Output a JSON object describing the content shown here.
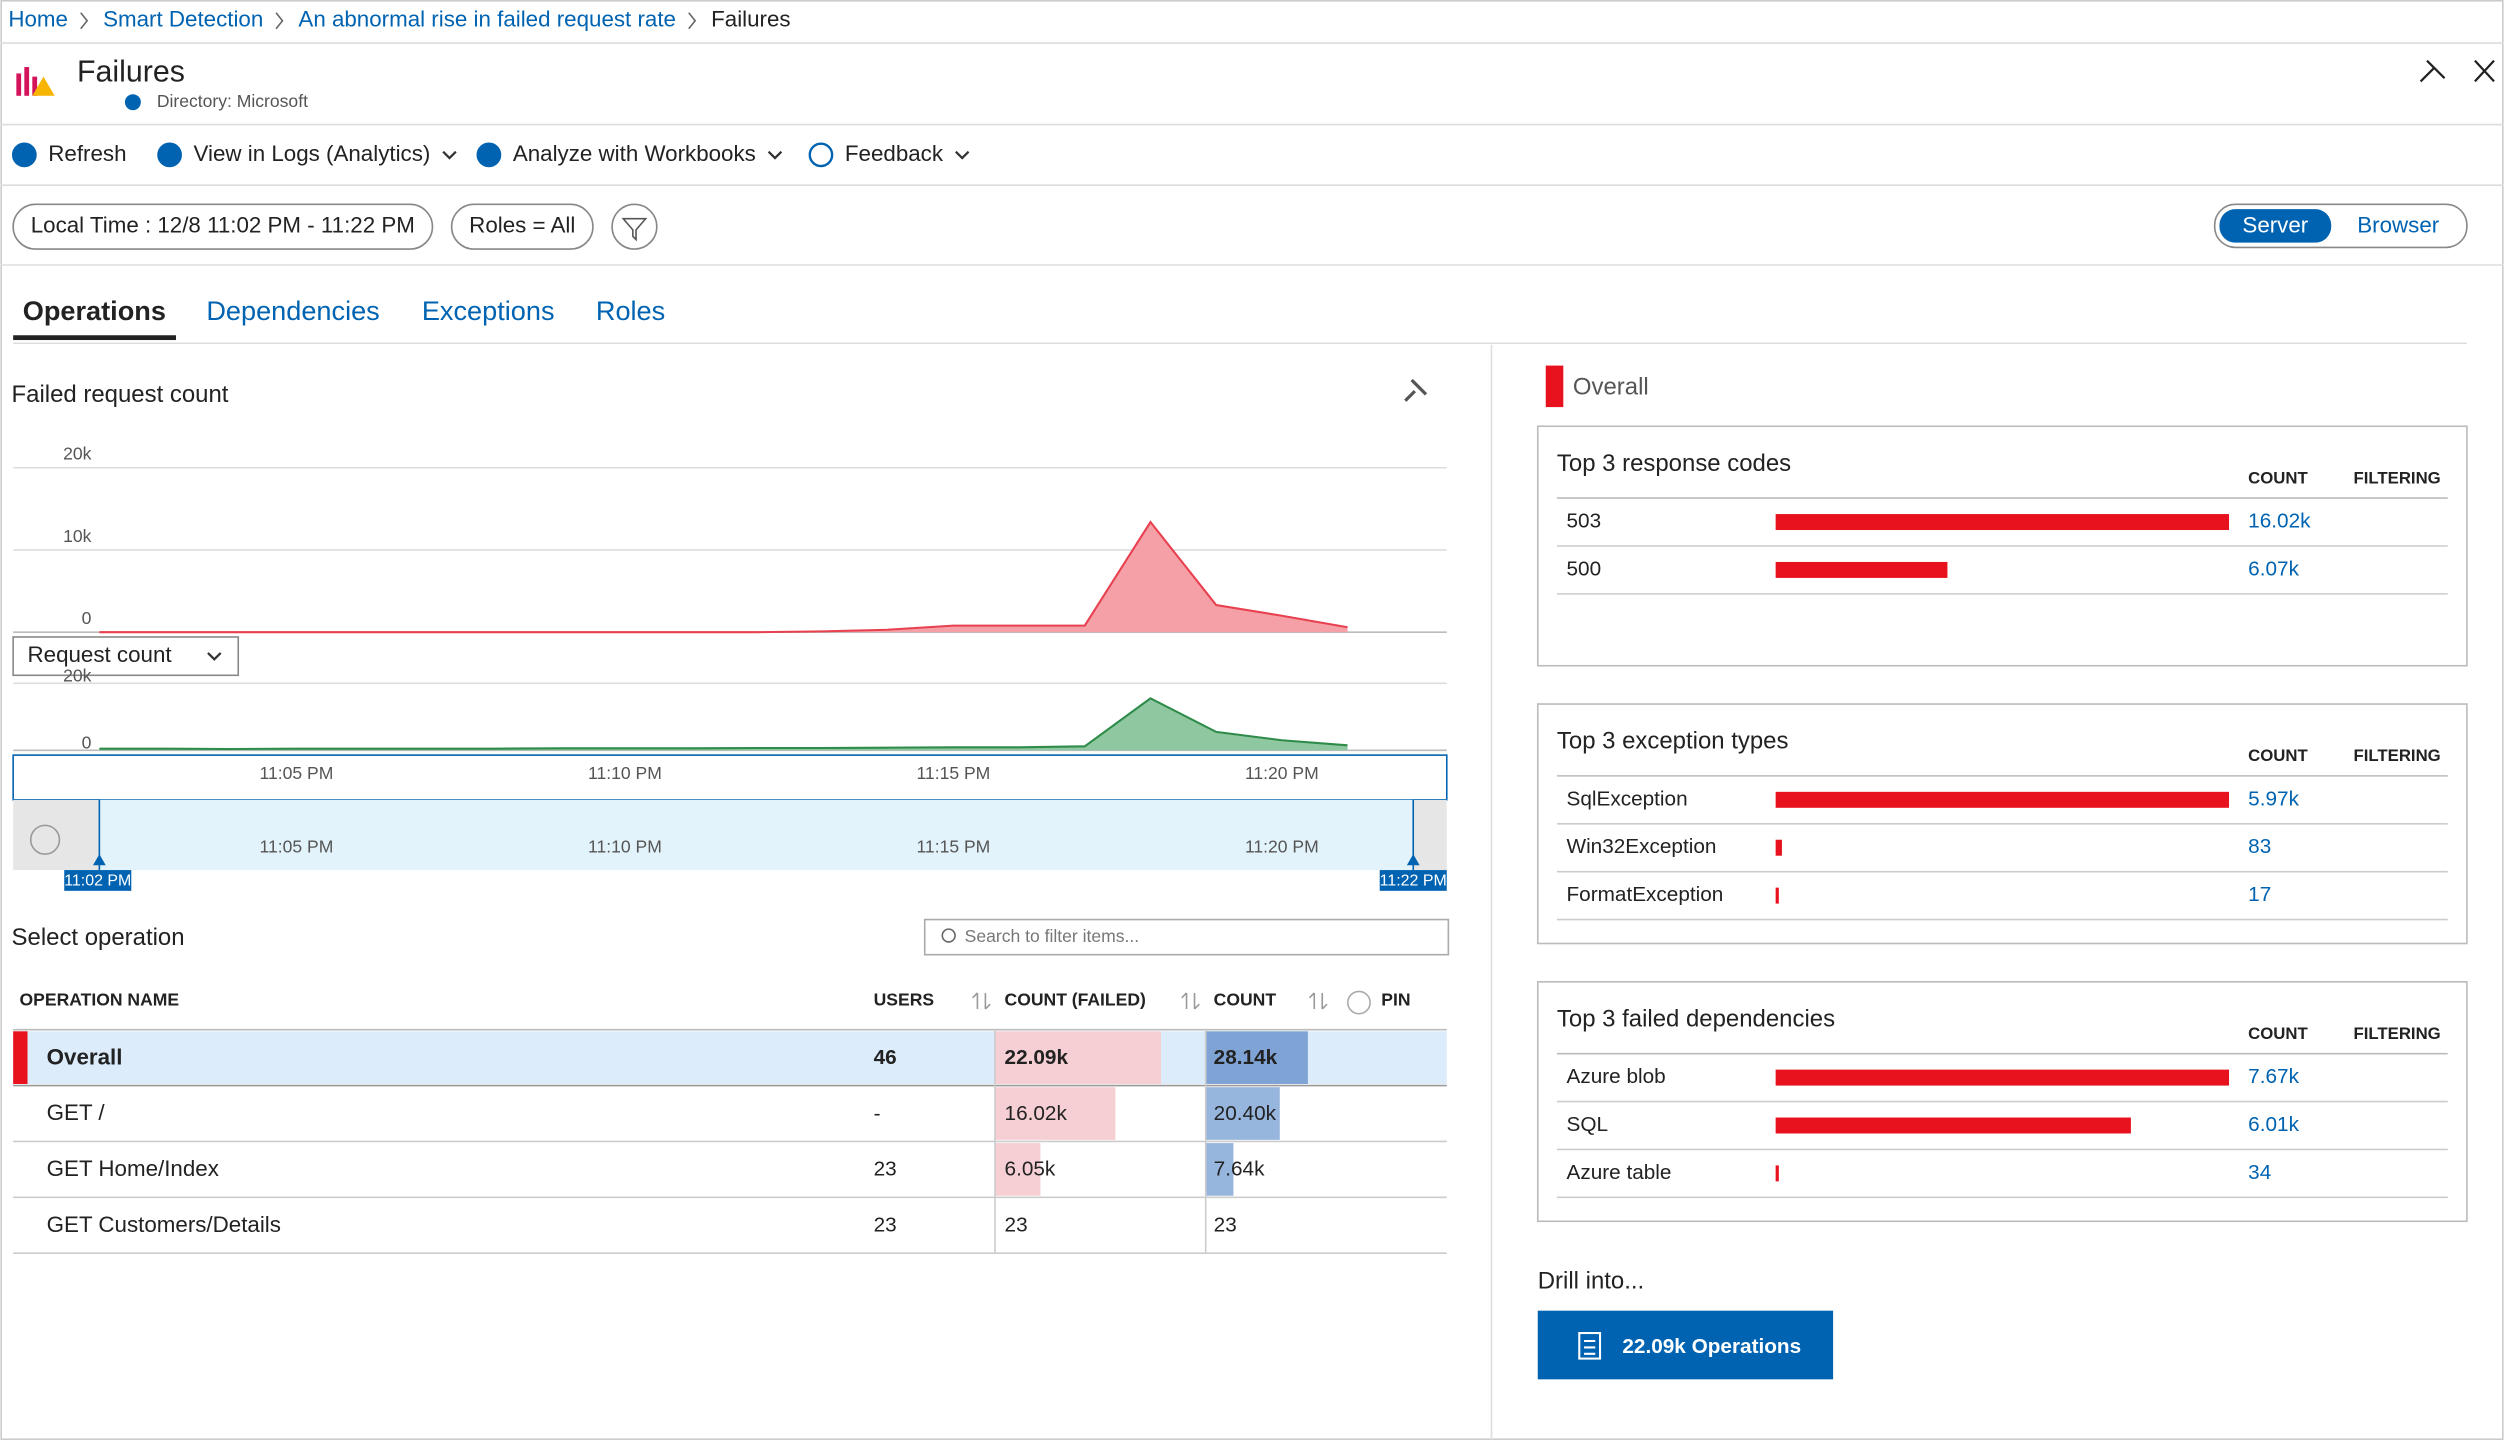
{
  "breadcrumb": [
    "Home",
    "Smart Detection",
    "An abnormal rise in failed request rate",
    "Failures"
  ],
  "header": {
    "title": "Failures",
    "directory": "Directory: Microsoft"
  },
  "toolbar": [
    "Refresh",
    "View in Logs (Analytics)",
    "Analyze with Workbooks",
    "Feedback"
  ],
  "filters": [
    "Local Time : 12/8 11:02 PM - 11:22 PM",
    "Roles = All"
  ],
  "toggle": [
    "Server",
    "Browser"
  ],
  "tabs": [
    "Operations",
    "Dependencies",
    "Exceptions",
    "Roles"
  ],
  "failed_chart": {
    "type": "area",
    "title": "Failed request count",
    "x": [
      "11:02 PM",
      "11:03 PM",
      "11:04 PM",
      "11:05 PM",
      "11:06 PM",
      "11:07 PM",
      "11:08 PM",
      "11:09 PM",
      "11:10 PM",
      "11:11 PM",
      "11:12 PM",
      "11:13 PM",
      "11:14 PM",
      "11:15 PM",
      "11:16 PM",
      "11:17 PM",
      "11:18 PM",
      "11:19 PM",
      "11:20 PM",
      "11:21 PM"
    ],
    "values": [
      0,
      0,
      0,
      0,
      0,
      0,
      0,
      0,
      0,
      0,
      0,
      100,
      300,
      800,
      800,
      800,
      13400,
      3300,
      2000,
      600
    ],
    "color": "#e8404f",
    "ylim": [
      0,
      20000
    ],
    "yticks": [
      {
        "value": 0,
        "label": "0"
      },
      {
        "value": 10000,
        "label": "10k"
      },
      {
        "value": 20000,
        "label": "20k"
      }
    ]
  },
  "count_chart": {
    "type": "area",
    "metric": "Request count",
    "values": [
      500,
      500,
      400,
      500,
      500,
      500,
      500,
      600,
      600,
      600,
      700,
      700,
      800,
      900,
      900,
      1200,
      15500,
      5500,
      3000,
      1500
    ],
    "color": "#2e8b4a",
    "ylim": [
      0,
      20000
    ],
    "yticks": [
      {
        "value": 0,
        "label": "0"
      },
      {
        "value": 20000,
        "label": "20k"
      }
    ],
    "xticks": [
      "11:05 PM",
      "11:10 PM",
      "11:15 PM",
      "11:20 PM"
    ]
  },
  "time_brush": {
    "start": "11:02 PM",
    "end": "11:22 PM",
    "xticks": [
      "11:05 PM",
      "11:10 PM",
      "11:15 PM",
      "11:20 PM"
    ]
  },
  "operations": {
    "title": "Select operation",
    "search_placeholder": "Search to filter items...",
    "columns": [
      "OPERATION NAME",
      "USERS",
      "COUNT (FAILED)",
      "COUNT",
      "PIN"
    ],
    "rows": [
      {
        "name": "Overall",
        "users": 46,
        "failed": 22090,
        "failed_label": "22.09k",
        "count": 28140,
        "count_label": "28.14k"
      },
      {
        "name": "GET /",
        "users": "-",
        "failed": 16020,
        "failed_label": "16.02k",
        "count": 20400,
        "count_label": "20.40k"
      },
      {
        "name": "GET Home/Index",
        "users": 23,
        "failed": 6050,
        "failed_label": "6.05k",
        "count": 7640,
        "count_label": "7.64k"
      },
      {
        "name": "GET Customers/Details",
        "users": 23,
        "failed": 23,
        "count": 23
      }
    ]
  },
  "overall_label": "Overall",
  "panels": [
    {
      "title": "Top 3 response codes",
      "count_header": "COUNT",
      "filter_header": "FILTERING",
      "items": [
        {
          "name": "503",
          "value": 16020,
          "label": "16.02k"
        },
        {
          "name": "500",
          "value": 6070,
          "label": "6.07k"
        }
      ]
    },
    {
      "title": "Top 3 exception types",
      "count_header": "COUNT",
      "filter_header": "FILTERING",
      "items": [
        {
          "name": "SqlException",
          "value": 5970,
          "label": "5.97k"
        },
        {
          "name": "Win32Exception",
          "value": 83
        },
        {
          "name": "FormatException",
          "value": 17
        }
      ]
    },
    {
      "title": "Top 3 failed dependencies",
      "count_header": "COUNT",
      "filter_header": "FILTERING",
      "items": [
        {
          "name": "Azure blob",
          "value": 7670,
          "label": "7.67k"
        },
        {
          "name": "SQL",
          "value": 6010,
          "label": "6.01k"
        },
        {
          "name": "Azure table",
          "value": 34
        }
      ]
    }
  ],
  "drill": {
    "title": "Drill into...",
    "button": "22.09k Operations"
  }
}
